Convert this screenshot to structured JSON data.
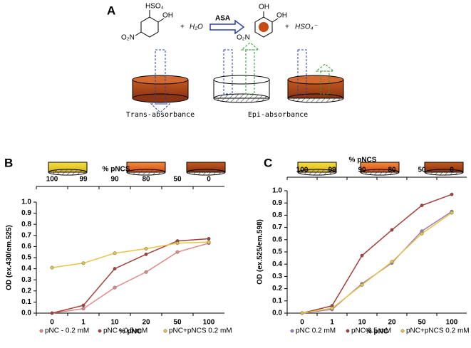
{
  "panel_labels": [
    "A",
    "B",
    "C"
  ],
  "scheme": {
    "reactant_group": "HSO₄",
    "reactant_oh": "OH",
    "reactant_no2": "O₂N",
    "plus1": "+",
    "water": "H₂O",
    "enzyme": "ASA",
    "product_oh1": "OH",
    "product_oh2": "OH",
    "product_no2": "O₂N",
    "plus2": "+",
    "sulfate": "HSO₄⁻",
    "trans_label": "Trans-absorbance",
    "epi_label": "Epi-absorbance"
  },
  "chart_data": [
    {
      "type": "line",
      "ylabel": "OD (ex.430/em.525)",
      "xlabel": "% pNC",
      "top_label": "% pNCS",
      "categories": [
        "0",
        "1",
        "10",
        "20",
        "50",
        "100"
      ],
      "top_categories": [
        "100",
        "99",
        "90",
        "80",
        "50",
        "0"
      ],
      "ylim": [
        0,
        1
      ],
      "yticks": [
        {
          "value": 0,
          "label": "0.0"
        },
        0.1,
        0.2,
        0.3,
        0.4,
        0.5,
        0.6,
        0.7,
        0.8,
        0.9,
        {
          "value": 1,
          "label": "1.0"
        }
      ],
      "series": [
        {
          "name": "pNC - 0.2 mM",
          "color": "#e08a86",
          "values": [
            0,
            0.04,
            0.23,
            0.37,
            0.55,
            0.63
          ]
        },
        {
          "name": "pNC - 0.5 mM",
          "color": "#a4403c",
          "values": [
            0,
            0.07,
            0.4,
            0.53,
            0.65,
            0.67
          ]
        },
        {
          "name": "pNC+pNCS  0.2 mM",
          "color": "#e8c446",
          "values": [
            0.41,
            0.45,
            0.54,
            0.58,
            0.63,
            0.64
          ]
        }
      ]
    },
    {
      "type": "line",
      "ylabel": "OD (ex.525/em.598)",
      "xlabel": "% pNC",
      "top_label": "% pNCS",
      "categories": [
        "0",
        "1",
        "10",
        "20",
        "50",
        "100"
      ],
      "top_categories": [
        "100",
        "99",
        "90",
        "80",
        "50",
        "0"
      ],
      "ylim": [
        0,
        1
      ],
      "yticks": [
        {
          "value": 0,
          "label": "0.0"
        },
        0.1,
        0.2,
        0.3,
        0.4,
        0.5,
        0.6,
        0.7,
        0.8,
        0.9,
        {
          "value": 1,
          "label": "1.0"
        }
      ],
      "series": [
        {
          "name": "pNC  0.2 mM",
          "color": "#9c7fb4",
          "values": [
            0,
            0.03,
            0.24,
            0.41,
            0.67,
            0.83
          ]
        },
        {
          "name": "pNC  0.5 mM",
          "color": "#a4403c",
          "values": [
            0,
            0.06,
            0.47,
            0.68,
            0.88,
            0.97
          ]
        },
        {
          "name": "pNC+pNCS 0.2 mM",
          "color": "#e8c446",
          "values": [
            0,
            0.04,
            0.23,
            0.42,
            0.65,
            0.82
          ]
        }
      ]
    }
  ]
}
